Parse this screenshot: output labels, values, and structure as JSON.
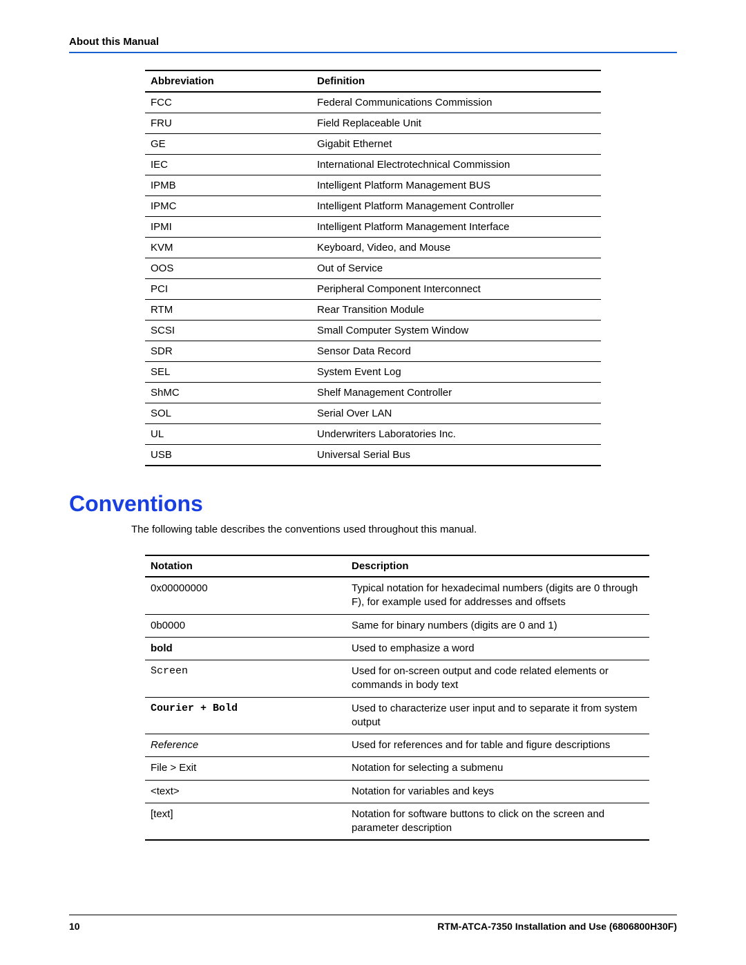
{
  "header": {
    "title": "About this Manual"
  },
  "abbrev_table": {
    "columns": [
      "Abbreviation",
      "Definition"
    ],
    "rows": [
      [
        "FCC",
        "Federal Communications Commission"
      ],
      [
        "FRU",
        "Field Replaceable Unit"
      ],
      [
        "GE",
        "Gigabit Ethernet"
      ],
      [
        "IEC",
        "International Electrotechnical Commission"
      ],
      [
        "IPMB",
        "Intelligent Platform Management BUS"
      ],
      [
        "IPMC",
        "Intelligent Platform Management Controller"
      ],
      [
        "IPMI",
        "Intelligent Platform Management Interface"
      ],
      [
        "KVM",
        "Keyboard, Video, and Mouse"
      ],
      [
        "OOS",
        "Out of Service"
      ],
      [
        "PCI",
        "Peripheral Component Interconnect"
      ],
      [
        "RTM",
        "Rear Transition Module"
      ],
      [
        "SCSI",
        "Small Computer System Window"
      ],
      [
        "SDR",
        "Sensor Data Record"
      ],
      [
        "SEL",
        "System Event Log"
      ],
      [
        "ShMC",
        "Shelf Management Controller"
      ],
      [
        "SOL",
        "Serial Over LAN"
      ],
      [
        "UL",
        "Underwriters Laboratories Inc."
      ],
      [
        "USB",
        "Universal Serial Bus"
      ]
    ]
  },
  "section_heading": "Conventions",
  "intro_text": "The following table describes the conventions used throughout this manual.",
  "conv_table": {
    "columns": [
      "Notation",
      "Description"
    ],
    "rows": [
      {
        "notation": "0x00000000",
        "style": "",
        "description": "Typical notation for hexadecimal numbers (digits are 0 through F), for example used for addresses and offsets"
      },
      {
        "notation": "0b0000",
        "style": "",
        "description": "Same for binary numbers (digits are 0 and 1)"
      },
      {
        "notation": "bold",
        "style": "bold",
        "description": "Used to emphasize a word"
      },
      {
        "notation": "Screen",
        "style": "mono",
        "description": "Used for on-screen output and code related elements or commands in body text"
      },
      {
        "notation": "Courier + Bold",
        "style": "mono-bold",
        "description": "Used to characterize user input and to separate it from system output"
      },
      {
        "notation": "Reference",
        "style": "italic",
        "description": "Used for references and for table and figure descriptions"
      },
      {
        "notation": "File > Exit",
        "style": "",
        "description": "Notation for selecting a submenu"
      },
      {
        "notation": "<text>",
        "style": "",
        "description": "Notation for  variables and keys"
      },
      {
        "notation": "[text]",
        "style": "",
        "description": "Notation for software buttons to click on the screen and parameter description"
      }
    ]
  },
  "footer": {
    "page_number": "10",
    "doc_title": "RTM-ATCA-7350 Installation and Use (6806800H30F)"
  },
  "colors": {
    "accent": "#1a5fd0",
    "heading": "#1a3fe0",
    "text": "#000000",
    "background": "#ffffff"
  },
  "typography": {
    "body_font": "Arial",
    "body_size_pt": 11,
    "heading_size_pt": 24,
    "mono_font": "Courier New"
  }
}
